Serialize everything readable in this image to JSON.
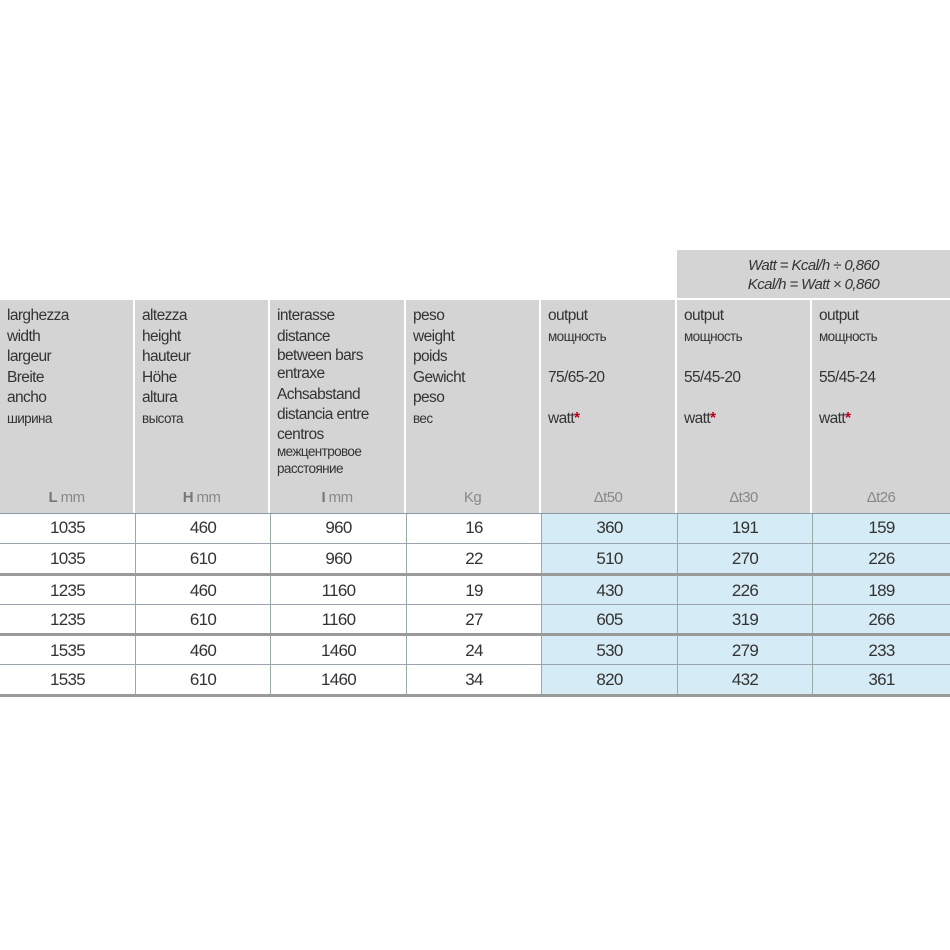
{
  "formula": {
    "line1": "Watt = Kcal/h ÷ 0,860",
    "line2": "Kcal/h = Watt × 0,860"
  },
  "columns": [
    {
      "labels": [
        "larghezza",
        "width",
        "largeur",
        "Breite",
        "ancho"
      ],
      "ru": [
        "ширина"
      ],
      "unit_symbol": "L",
      "unit": "mm"
    },
    {
      "labels": [
        "altezza",
        "height",
        "hauteur",
        "Höhe",
        "altura"
      ],
      "ru": [
        "высота"
      ],
      "unit_symbol": "H",
      "unit": "mm"
    },
    {
      "labels": [
        "interasse",
        "distance",
        "between bars",
        "entraxe",
        "Achsabstand",
        "distancia entre",
        "centros"
      ],
      "ru": [
        "межцентровое",
        "расстояние"
      ],
      "unit_symbol": "I",
      "unit": "mm"
    },
    {
      "labels": [
        "peso",
        "weight",
        "poids",
        "Gewicht",
        "peso"
      ],
      "ru": [
        "вес"
      ],
      "unit_symbol": "",
      "unit": "Kg"
    },
    {
      "output": "output",
      "ru": "мощность",
      "condition": "75/65-20",
      "watt": "watt",
      "star": "*",
      "unit": "Δt50"
    },
    {
      "output": "output",
      "ru": "мощность",
      "condition": "55/45-20",
      "watt": "watt",
      "star": "*",
      "unit": "Δt30"
    },
    {
      "output": "output",
      "ru": "мощность",
      "condition": "55/45-24",
      "watt": "watt",
      "star": "*",
      "unit": "Δt26"
    }
  ],
  "rows": [
    [
      "1035",
      "460",
      "960",
      "16",
      "360",
      "191",
      "159"
    ],
    [
      "1035",
      "610",
      "960",
      "22",
      "510",
      "270",
      "226"
    ],
    [
      "1235",
      "460",
      "1160",
      "19",
      "430",
      "226",
      "189"
    ],
    [
      "1235",
      "610",
      "1160",
      "27",
      "605",
      "319",
      "266"
    ],
    [
      "1535",
      "460",
      "1460",
      "24",
      "530",
      "279",
      "233"
    ],
    [
      "1535",
      "610",
      "1460",
      "34",
      "820",
      "432",
      "361"
    ]
  ],
  "colors": {
    "header_bg": "#d4d4d4",
    "output_bg": "#d5ebf5",
    "asterisk": "#c0001a"
  }
}
